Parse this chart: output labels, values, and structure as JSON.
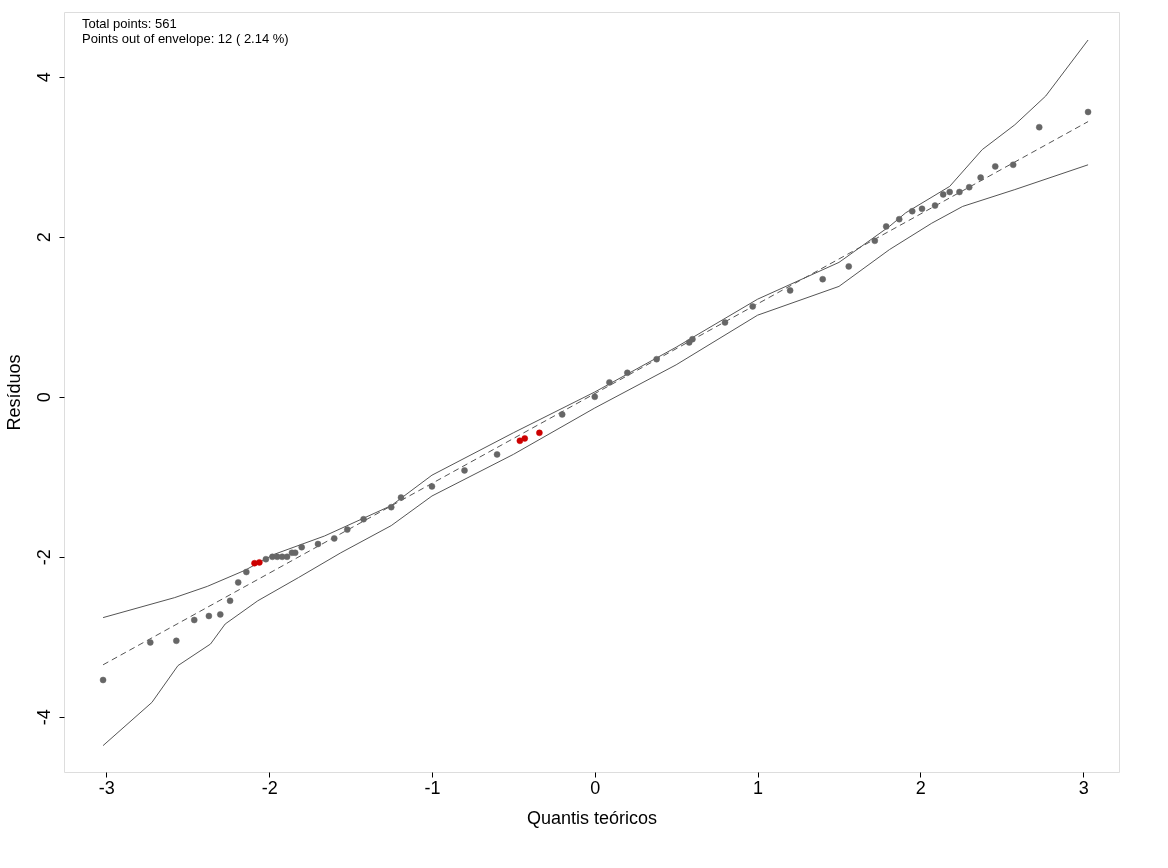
{
  "chart_data": {
    "type": "scatter",
    "xlabel": "Quantis teóricos",
    "ylabel": "Resíduos",
    "annotations": [
      "Total points: 561",
      "Points out of envelope: 12 ( 2.14 %)"
    ],
    "xlim": [
      -3.26,
      3.22
    ],
    "ylim": [
      -4.69,
      4.81
    ],
    "xticks": [
      -3,
      -2,
      -1,
      0,
      1,
      2,
      3
    ],
    "yticks": [
      -4,
      -2,
      0,
      2,
      4
    ],
    "grid": false,
    "series": [
      {
        "type": "line",
        "line_style": "solid",
        "color": "#555555",
        "x": [
          -3.02,
          -2.58,
          -2.38,
          -2.15,
          -1.97,
          -1.66,
          -1.25,
          -1.0,
          -0.5,
          0,
          0.5,
          1.0,
          1.5,
          1.81,
          1.91,
          2.18,
          2.38,
          2.58,
          2.77,
          3.03
        ],
        "values": [
          -2.76,
          -2.51,
          -2.37,
          -2.17,
          -1.97,
          -1.74,
          -1.36,
          -0.98,
          -0.45,
          0.06,
          0.62,
          1.22,
          1.68,
          2.13,
          2.3,
          2.63,
          3.09,
          3.4,
          3.76,
          4.46
        ]
      },
      {
        "type": "line",
        "line_style": "solid",
        "color": "#555555",
        "x": [
          -3.02,
          -2.72,
          -2.56,
          -2.36,
          -2.27,
          -2.07,
          -1.82,
          -1.56,
          -1.25,
          -1.0,
          -0.5,
          0,
          0.5,
          1.0,
          1.5,
          1.81,
          2.07,
          2.26,
          2.58,
          3.03
        ],
        "values": [
          -4.36,
          -3.82,
          -3.36,
          -3.09,
          -2.84,
          -2.55,
          -2.26,
          -1.95,
          -1.61,
          -1.24,
          -0.72,
          -0.14,
          0.4,
          1.02,
          1.38,
          1.84,
          2.17,
          2.38,
          2.59,
          2.9
        ]
      },
      {
        "type": "line",
        "line_style": "dashed",
        "color": "#555555",
        "x": [
          -3.02,
          3.03
        ],
        "values": [
          -3.35,
          3.44
        ]
      },
      {
        "type": "scatter",
        "marker": "circle",
        "color": "#666666",
        "x": [
          -3.02,
          -2.73,
          -2.57,
          -2.46,
          -2.37,
          -2.3,
          -2.24,
          -2.19,
          -2.14,
          -2.02,
          -1.98,
          -1.95,
          -1.92,
          -1.89,
          -1.86,
          -1.84,
          -1.8,
          -1.7,
          -1.6,
          -1.52,
          -1.42,
          -1.25,
          -1.19,
          -1.0,
          -0.8,
          -0.6,
          -0.2,
          0.0,
          0.09,
          0.2,
          0.38,
          0.58,
          0.6,
          0.8,
          0.97,
          1.2,
          1.4,
          1.56,
          1.72,
          1.79,
          1.87,
          1.95,
          2.01,
          2.09,
          2.14,
          2.18,
          2.24,
          2.3,
          2.37,
          2.46,
          2.57,
          2.73,
          3.03
        ],
        "values": [
          -3.54,
          -3.07,
          -3.05,
          -2.79,
          -2.74,
          -2.72,
          -2.55,
          -2.32,
          -2.19,
          -2.03,
          -2.0,
          -2.0,
          -2.0,
          -2.0,
          -1.95,
          -1.95,
          -1.88,
          -1.84,
          -1.77,
          -1.66,
          -1.53,
          -1.38,
          -1.26,
          -1.12,
          -0.92,
          -0.72,
          -0.22,
          0.0,
          0.18,
          0.3,
          0.47,
          0.68,
          0.72,
          0.93,
          1.13,
          1.33,
          1.47,
          1.63,
          1.95,
          2.13,
          2.22,
          2.32,
          2.35,
          2.39,
          2.53,
          2.56,
          2.56,
          2.62,
          2.74,
          2.88,
          2.9,
          3.37,
          3.56
        ]
      },
      {
        "type": "scatter",
        "marker": "circle",
        "color": "#cc0000",
        "x": [
          -2.09,
          -2.06,
          -0.46,
          -0.43,
          -0.34
        ],
        "values": [
          -2.08,
          -2.07,
          -0.55,
          -0.52,
          -0.45
        ]
      }
    ]
  }
}
